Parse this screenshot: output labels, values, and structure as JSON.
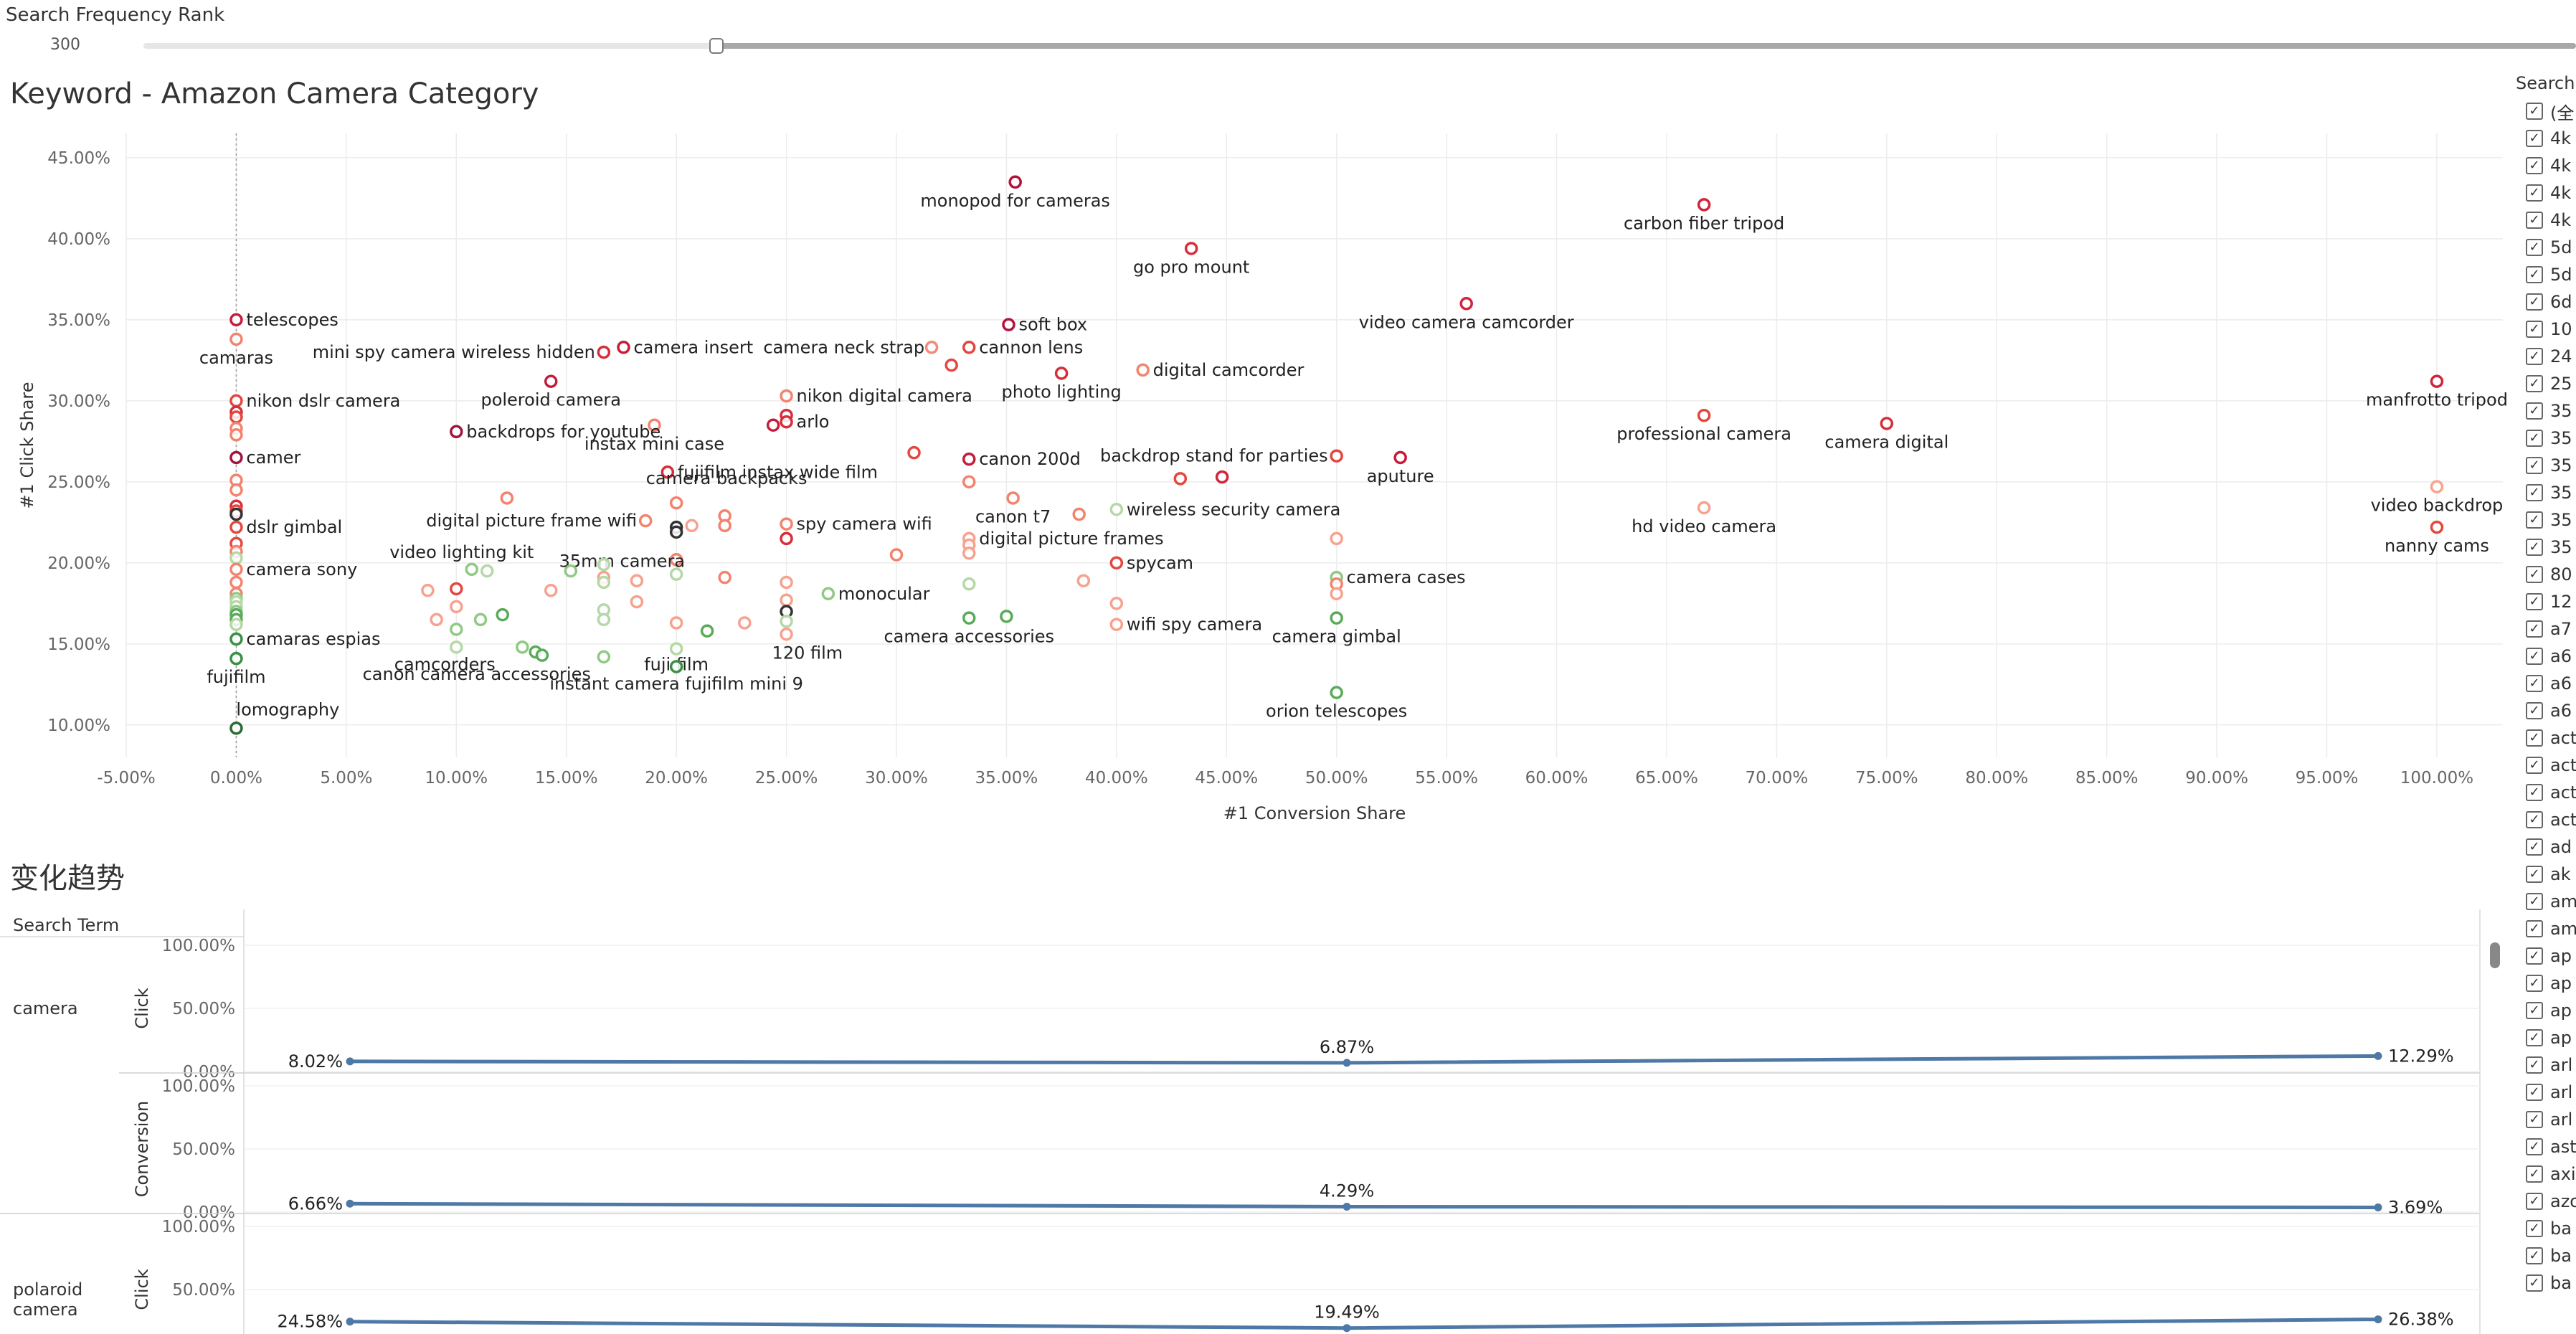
{
  "filter": {
    "title": "Search Frequency Rank",
    "value": "300"
  },
  "scatter_title": "Keyword - Amazon Camera Category",
  "trend_title": "变化趋势",
  "legend": {
    "title": "Search Term",
    "items": [
      "(全",
      "4k",
      "4k",
      "4k",
      "4k",
      "5d",
      "5d",
      "6d",
      "10",
      "24",
      "25",
      "35",
      "35",
      "35",
      "35",
      "35",
      "35",
      "80",
      "12",
      "a7",
      "a6",
      "a6",
      "a6",
      "act",
      "act",
      "act",
      "act",
      "ad",
      "ak",
      "am",
      "am",
      "ap",
      "ap",
      "ap",
      "ap",
      "arl",
      "arl",
      "arl",
      "ast",
      "axi",
      "azo",
      "ba",
      "ba",
      "ba"
    ]
  },
  "chart_data": [
    {
      "type": "scatter",
      "title": "Keyword - Amazon Camera Category",
      "xlabel": "#1 Conversion Share",
      "ylabel": "#1 Click Share",
      "xlim": [
        -0.05,
        1.03
      ],
      "ylim": [
        0.08,
        0.465
      ],
      "xticks": [
        -0.05,
        0,
        0.05,
        0.1,
        0.15,
        0.2,
        0.25,
        0.3,
        0.35,
        0.4,
        0.45,
        0.5,
        0.55,
        0.6,
        0.65,
        0.7,
        0.75,
        0.8,
        0.85,
        0.9,
        0.95,
        1.0
      ],
      "xtick_labels": [
        "-5.00%",
        "0.00%",
        "5.00%",
        "10.00%",
        "15.00%",
        "20.00%",
        "25.00%",
        "30.00%",
        "35.00%",
        "40.00%",
        "45.00%",
        "50.00%",
        "55.00%",
        "60.00%",
        "65.00%",
        "70.00%",
        "75.00%",
        "80.00%",
        "85.00%",
        "90.00%",
        "95.00%",
        "100.00%"
      ],
      "yticks": [
        0.1,
        0.15,
        0.2,
        0.25,
        0.3,
        0.35,
        0.4,
        0.45
      ],
      "ytick_labels": [
        "10.00%",
        "15.00%",
        "20.00%",
        "25.00%",
        "30.00%",
        "35.00%",
        "40.00%",
        "45.00%"
      ],
      "grid": true,
      "points": [
        {
          "x": 0.354,
          "y": 0.435,
          "label": "monopod for cameras",
          "color": "#b5123a"
        },
        {
          "x": 0.667,
          "y": 0.421,
          "label": "carbon fiber tripod",
          "color": "#d2243a"
        },
        {
          "x": 0.434,
          "y": 0.394,
          "label": "go pro mount",
          "color": "#d62e3a"
        },
        {
          "x": 0.559,
          "y": 0.36,
          "label": "video camera camcorder",
          "color": "#d2243a"
        },
        {
          "x": 0.0,
          "y": 0.35,
          "label": "telescopes",
          "color": "#c81b3c"
        },
        {
          "x": 0.351,
          "y": 0.347,
          "label": "soft box",
          "color": "#b5123a"
        },
        {
          "x": 0.0,
          "y": 0.338,
          "label": "camaras",
          "color": "#f4836e"
        },
        {
          "x": 0.176,
          "y": 0.333,
          "label": "camera insert",
          "color": "#c81b3c"
        },
        {
          "x": 0.167,
          "y": 0.33,
          "label": "mini spy camera wireless hidden",
          "color": "#d62e3a"
        },
        {
          "x": 0.333,
          "y": 0.333,
          "label": "cannon lens",
          "color": "#e3473f"
        },
        {
          "x": 0.316,
          "y": 0.333,
          "label": "camera neck strap",
          "color": "#f28a7a"
        },
        {
          "x": 0.325,
          "y": 0.322,
          "label": "",
          "color": "#e3473f"
        },
        {
          "x": 0.412,
          "y": 0.319,
          "label": "digital camcorder",
          "color": "#f4836e"
        },
        {
          "x": 0.375,
          "y": 0.317,
          "label": "photo lighting",
          "color": "#d62e3a"
        },
        {
          "x": 1.0,
          "y": 0.312,
          "label": "manfrotto tripod",
          "color": "#d2243a"
        },
        {
          "x": 0.143,
          "y": 0.312,
          "label": "poleroid camera",
          "color": "#c81b3c"
        },
        {
          "x": 0.0,
          "y": 0.3,
          "label": "nikon dslr camera",
          "color": "#e3473f"
        },
        {
          "x": 0.25,
          "y": 0.303,
          "label": "nikon digital camera",
          "color": "#f4836e"
        },
        {
          "x": 0.0,
          "y": 0.293,
          "label": "",
          "color": "#d62e3a"
        },
        {
          "x": 0.0,
          "y": 0.29,
          "label": "",
          "color": "#e3473f"
        },
        {
          "x": 0.667,
          "y": 0.291,
          "label": "professional camera",
          "color": "#e3473f"
        },
        {
          "x": 0.25,
          "y": 0.291,
          "label": "",
          "color": "#d62e3a"
        },
        {
          "x": 0.25,
          "y": 0.287,
          "label": "arlo",
          "color": "#d62e3a"
        },
        {
          "x": 0.244,
          "y": 0.285,
          "label": "",
          "color": "#c81b3c"
        },
        {
          "x": 0.19,
          "y": 0.285,
          "label": "instax mini case",
          "color": "#f4836e"
        },
        {
          "x": 0.75,
          "y": 0.286,
          "label": "camera digital",
          "color": "#d62e3a"
        },
        {
          "x": 0.0,
          "y": 0.283,
          "label": "",
          "color": "#f4836e"
        },
        {
          "x": 0.0,
          "y": 0.279,
          "label": "",
          "color": "#f4836e"
        },
        {
          "x": 0.1,
          "y": 0.281,
          "label": "backdrops for youtube",
          "color": "#a0153e"
        },
        {
          "x": 0.308,
          "y": 0.268,
          "label": "",
          "color": "#e3473f"
        },
        {
          "x": 0.333,
          "y": 0.264,
          "label": "canon 200d",
          "color": "#c81b3c"
        },
        {
          "x": 0.5,
          "y": 0.266,
          "label": "backdrop stand for parties",
          "color": "#e3473f"
        },
        {
          "x": 0.529,
          "y": 0.265,
          "label": "aputure",
          "color": "#c81b3c"
        },
        {
          "x": 0.0,
          "y": 0.265,
          "label": "camer",
          "color": "#a0153e"
        },
        {
          "x": 0.196,
          "y": 0.256,
          "label": "fujifilm instax wide film",
          "color": "#d62e3a"
        },
        {
          "x": 0.448,
          "y": 0.253,
          "label": "",
          "color": "#d2243a"
        },
        {
          "x": 0.429,
          "y": 0.252,
          "label": "",
          "color": "#e3473f"
        },
        {
          "x": 0.333,
          "y": 0.25,
          "label": "",
          "color": "#f4836e"
        },
        {
          "x": 0.0,
          "y": 0.251,
          "label": "",
          "color": "#f4836e"
        },
        {
          "x": 1.0,
          "y": 0.247,
          "label": "video backdrop",
          "color": "#f7a28f"
        },
        {
          "x": 0.0,
          "y": 0.245,
          "label": "",
          "color": "#f4836e"
        },
        {
          "x": 0.123,
          "y": 0.24,
          "label": "",
          "color": "#f4836e"
        },
        {
          "x": 0.353,
          "y": 0.24,
          "label": "canon t7",
          "color": "#f4836e"
        },
        {
          "x": 0.2,
          "y": 0.237,
          "label": "camera backpacks",
          "color": "#f4836e"
        },
        {
          "x": 0.0,
          "y": 0.235,
          "label": "",
          "color": "#d62e3a"
        },
        {
          "x": 0.667,
          "y": 0.234,
          "label": "hd video camera",
          "color": "#f7a28f"
        },
        {
          "x": 0.4,
          "y": 0.233,
          "label": "wireless security camera",
          "color": "#b5d8a6"
        },
        {
          "x": 0.0,
          "y": 0.232,
          "label": "",
          "color": "#e3473f"
        },
        {
          "x": 0.0,
          "y": 0.23,
          "label": "",
          "color": "#333333"
        },
        {
          "x": 0.383,
          "y": 0.23,
          "label": "",
          "color": "#f4836e"
        },
        {
          "x": 0.222,
          "y": 0.229,
          "label": "",
          "color": "#f4836e"
        },
        {
          "x": 0.186,
          "y": 0.226,
          "label": "digital picture frame wifi",
          "color": "#f4836e"
        },
        {
          "x": 0.25,
          "y": 0.224,
          "label": "spy camera wifi",
          "color": "#f4836e"
        },
        {
          "x": 0.222,
          "y": 0.223,
          "label": "",
          "color": "#f4836e"
        },
        {
          "x": 0.207,
          "y": 0.223,
          "label": "",
          "color": "#f7a28f"
        },
        {
          "x": 1.0,
          "y": 0.222,
          "label": "nanny cams",
          "color": "#e3473f"
        },
        {
          "x": 0.0,
          "y": 0.222,
          "label": "dslr gimbal",
          "color": "#e3473f"
        },
        {
          "x": 0.2,
          "y": 0.222,
          "label": "",
          "color": "#333333"
        },
        {
          "x": 0.2,
          "y": 0.219,
          "label": "",
          "color": "#333333"
        },
        {
          "x": 0.5,
          "y": 0.215,
          "label": "",
          "color": "#f7a28f"
        },
        {
          "x": 0.25,
          "y": 0.215,
          "label": "",
          "color": "#d62e3a"
        },
        {
          "x": 0.333,
          "y": 0.215,
          "label": "digital picture frames",
          "color": "#f7a28f"
        },
        {
          "x": 0.0,
          "y": 0.212,
          "label": "",
          "color": "#e3473f"
        },
        {
          "x": 0.333,
          "y": 0.211,
          "label": "",
          "color": "#f7a28f"
        },
        {
          "x": 0.0,
          "y": 0.207,
          "label": "",
          "color": "#f4836e"
        },
        {
          "x": 0.3,
          "y": 0.205,
          "label": "",
          "color": "#f4836e"
        },
        {
          "x": 0.333,
          "y": 0.206,
          "label": "",
          "color": "#f7a28f"
        },
        {
          "x": 0.0,
          "y": 0.203,
          "label": "",
          "color": "#b5d8a6"
        },
        {
          "x": 0.2,
          "y": 0.202,
          "label": "35mm camera",
          "color": "#f4836e"
        },
        {
          "x": 0.167,
          "y": 0.199,
          "label": "",
          "color": "#b5d8a6"
        },
        {
          "x": 0.4,
          "y": 0.2,
          "label": "spycam",
          "color": "#e3473f"
        },
        {
          "x": 0.0,
          "y": 0.196,
          "label": "camera sony",
          "color": "#f4836e"
        },
        {
          "x": 0.152,
          "y": 0.195,
          "label": "",
          "color": "#90c984"
        },
        {
          "x": 0.107,
          "y": 0.196,
          "label": "video lighting kit",
          "color": "#90c984"
        },
        {
          "x": 0.114,
          "y": 0.195,
          "label": "",
          "color": "#b5d8a6"
        },
        {
          "x": 0.2,
          "y": 0.193,
          "label": "",
          "color": "#b5d8a6"
        },
        {
          "x": 0.5,
          "y": 0.191,
          "label": "camera cases",
          "color": "#90c984"
        },
        {
          "x": 0.222,
          "y": 0.191,
          "label": "",
          "color": "#f4836e"
        },
        {
          "x": 0.167,
          "y": 0.191,
          "label": "",
          "color": "#f7a28f"
        },
        {
          "x": 0.182,
          "y": 0.189,
          "label": "",
          "color": "#f7a28f"
        },
        {
          "x": 0.167,
          "y": 0.188,
          "label": "",
          "color": "#b5d8a6"
        },
        {
          "x": 0.385,
          "y": 0.189,
          "label": "",
          "color": "#f7a28f"
        },
        {
          "x": 0.25,
          "y": 0.188,
          "label": "",
          "color": "#f7a28f"
        },
        {
          "x": 0.0,
          "y": 0.188,
          "label": "",
          "color": "#f4836e"
        },
        {
          "x": 0.333,
          "y": 0.187,
          "label": "",
          "color": "#b5d8a6"
        },
        {
          "x": 0.5,
          "y": 0.187,
          "label": "",
          "color": "#f4836e"
        },
        {
          "x": 0.1,
          "y": 0.184,
          "label": "",
          "color": "#e3473f"
        },
        {
          "x": 0.143,
          "y": 0.183,
          "label": "",
          "color": "#f7a28f"
        },
        {
          "x": 0.087,
          "y": 0.183,
          "label": "",
          "color": "#f7a28f"
        },
        {
          "x": 0.0,
          "y": 0.181,
          "label": "",
          "color": "#f4836e"
        },
        {
          "x": 0.269,
          "y": 0.181,
          "label": "monocular",
          "color": "#90c984"
        },
        {
          "x": 0.5,
          "y": 0.181,
          "label": "",
          "color": "#f7a28f"
        },
        {
          "x": 0.0,
          "y": 0.178,
          "label": "",
          "color": "#90c984"
        },
        {
          "x": 0.182,
          "y": 0.176,
          "label": "",
          "color": "#f7a28f"
        },
        {
          "x": 0.25,
          "y": 0.177,
          "label": "",
          "color": "#f7a28f"
        },
        {
          "x": 0.0,
          "y": 0.176,
          "label": "",
          "color": "#b5d8a6"
        },
        {
          "x": 0.4,
          "y": 0.175,
          "label": "",
          "color": "#f7a28f"
        },
        {
          "x": 0.0,
          "y": 0.173,
          "label": "",
          "color": "#b5d8a6"
        },
        {
          "x": 0.1,
          "y": 0.173,
          "label": "",
          "color": "#f7a28f"
        },
        {
          "x": 0.167,
          "y": 0.171,
          "label": "",
          "color": "#b5d8a6"
        },
        {
          "x": 0.25,
          "y": 0.17,
          "label": "",
          "color": "#333333"
        },
        {
          "x": 0.0,
          "y": 0.17,
          "label": "",
          "color": "#90c984"
        },
        {
          "x": 0.0,
          "y": 0.168,
          "label": "",
          "color": "#5aaa5a"
        },
        {
          "x": 0.121,
          "y": 0.168,
          "label": "",
          "color": "#5aaa5a"
        },
        {
          "x": 0.35,
          "y": 0.167,
          "label": "",
          "color": "#5aaa5a"
        },
        {
          "x": 0.333,
          "y": 0.166,
          "label": "camera accessories",
          "color": "#5aaa5a"
        },
        {
          "x": 0.5,
          "y": 0.166,
          "label": "camera gimbal",
          "color": "#5aaa5a"
        },
        {
          "x": 0.111,
          "y": 0.165,
          "label": "",
          "color": "#90c984"
        },
        {
          "x": 0.091,
          "y": 0.165,
          "label": "",
          "color": "#f7a28f"
        },
        {
          "x": 0.0,
          "y": 0.165,
          "label": "",
          "color": "#5aaa5a"
        },
        {
          "x": 0.167,
          "y": 0.165,
          "label": "",
          "color": "#b5d8a6"
        },
        {
          "x": 0.25,
          "y": 0.164,
          "label": "",
          "color": "#b5d8a6"
        },
        {
          "x": 0.231,
          "y": 0.163,
          "label": "",
          "color": "#f7a28f"
        },
        {
          "x": 0.2,
          "y": 0.163,
          "label": "",
          "color": "#f7a28f"
        },
        {
          "x": 0.0,
          "y": 0.162,
          "label": "",
          "color": "#b5d8a6"
        },
        {
          "x": 0.4,
          "y": 0.162,
          "label": "wifi spy camera",
          "color": "#f7a28f"
        },
        {
          "x": 0.1,
          "y": 0.159,
          "label": "",
          "color": "#90c984"
        },
        {
          "x": 0.214,
          "y": 0.158,
          "label": "",
          "color": "#5aaa5a"
        },
        {
          "x": 0.25,
          "y": 0.156,
          "label": "120 film",
          "color": "#f7a28f"
        },
        {
          "x": 0.0,
          "y": 0.153,
          "label": "camaras espias",
          "color": "#3a8f45"
        },
        {
          "x": 0.13,
          "y": 0.148,
          "label": "",
          "color": "#90c984"
        },
        {
          "x": 0.136,
          "y": 0.145,
          "label": "",
          "color": "#5aaa5a"
        },
        {
          "x": 0.1,
          "y": 0.148,
          "label": "camcorders",
          "color": "#b5d8a6"
        },
        {
          "x": 0.139,
          "y": 0.143,
          "label": "",
          "color": "#5aaa5a"
        },
        {
          "x": 0.2,
          "y": 0.147,
          "label": "fuji film",
          "color": "#b5d8a6"
        },
        {
          "x": 0.0,
          "y": 0.141,
          "label": "fujifilm",
          "color": "#3a8f45"
        },
        {
          "x": 0.167,
          "y": 0.142,
          "label": "canon camera accessories",
          "color": "#90c984"
        },
        {
          "x": 0.2,
          "y": 0.136,
          "label": "instant camera fujifilm mini 9",
          "color": "#3a8f45"
        },
        {
          "x": 0.5,
          "y": 0.12,
          "label": "orion telescopes",
          "color": "#5aaa5a"
        },
        {
          "x": 0.0,
          "y": 0.098,
          "label": "lomography",
          "color": "#2e6b35"
        }
      ]
    },
    {
      "type": "line",
      "title": "变化趋势",
      "row_header": "Search Term",
      "rows": [
        {
          "term": "camera",
          "panels": [
            {
              "measure": "Click",
              "ylim": [
                0,
                1
              ],
              "ytick_labels": [
                "0.00%",
                "50.00%",
                "100.00%"
              ],
              "values": [
                0.0802,
                0.0687,
                0.1229
              ],
              "labels": [
                "8.02%",
                "6.87%",
                "12.29%"
              ]
            },
            {
              "measure": "Conversion",
              "ylim": [
                0,
                1
              ],
              "ytick_labels": [
                "0.00%",
                "50.00%",
                "100.00%"
              ],
              "values": [
                0.0666,
                0.0429,
                0.0369
              ],
              "labels": [
                "6.66%",
                "4.29%",
                "3.69%"
              ]
            }
          ]
        },
        {
          "term": "polaroid camera",
          "panels": [
            {
              "measure": "Click",
              "ylim": [
                0,
                1
              ],
              "ytick_labels": [
                "0.00%",
                "50.00%",
                "100.00%"
              ],
              "values": [
                0.2458,
                0.1949,
                0.2638
              ],
              "labels": [
                "24.58%",
                "19.49%",
                "26.38%"
              ]
            }
          ]
        }
      ]
    }
  ]
}
